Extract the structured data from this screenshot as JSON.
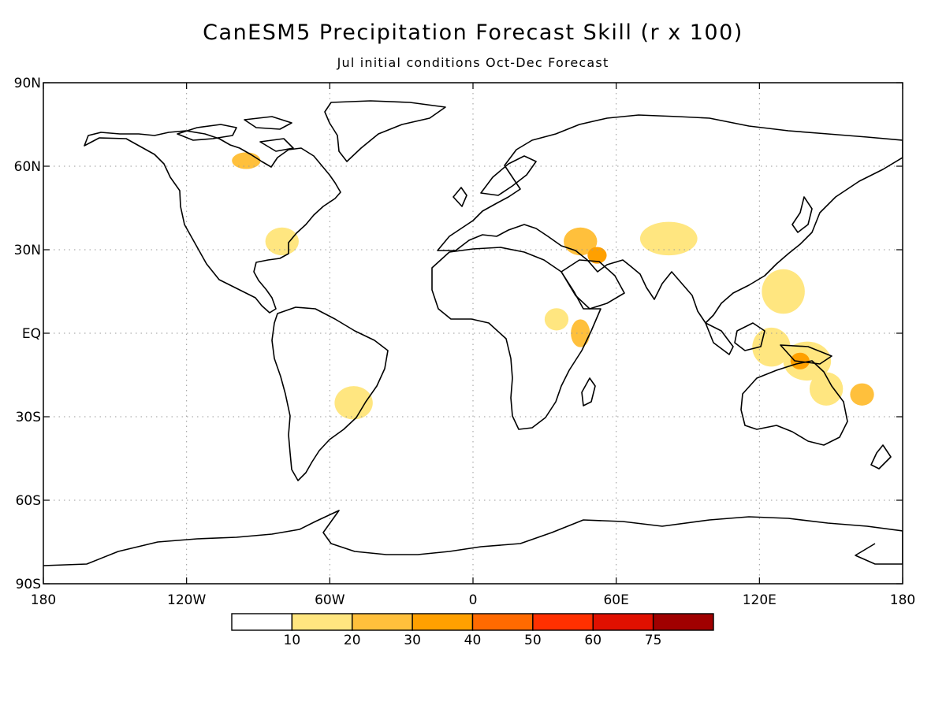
{
  "header": {
    "title": "CanESM5 Precipitation Forecast Skill (r x 100)",
    "subtitle": "Jul initial conditions  Oct-Dec Forecast"
  },
  "axes": {
    "lon_ticks": [
      {
        "lon": -180,
        "label": "180"
      },
      {
        "lon": -120,
        "label": "120W"
      },
      {
        "lon": -60,
        "label": "60W"
      },
      {
        "lon": 0,
        "label": "0"
      },
      {
        "lon": 60,
        "label": "60E"
      },
      {
        "lon": 120,
        "label": "120E"
      },
      {
        "lon": 180,
        "label": "180"
      }
    ],
    "lat_ticks": [
      {
        "lat": 90,
        "label": "90N"
      },
      {
        "lat": 60,
        "label": "60N"
      },
      {
        "lat": 30,
        "label": "30N"
      },
      {
        "lat": 0,
        "label": "EQ"
      },
      {
        "lat": -30,
        "label": "30S"
      },
      {
        "lat": -60,
        "label": "60S"
      },
      {
        "lat": -90,
        "label": "90S"
      }
    ],
    "grid": true
  },
  "legend": {
    "colors": [
      "#ffffff",
      "#ffe680",
      "#ffc03c",
      "#ffa000",
      "#ff6a00",
      "#ff3000",
      "#e01000",
      "#a00000"
    ],
    "labels": [
      "10",
      "20",
      "30",
      "40",
      "50",
      "60",
      "75"
    ]
  },
  "skill_patches": [
    {
      "lon": 82,
      "lat": 34,
      "rx": 12,
      "ry": 6,
      "level": 1
    },
    {
      "lon": -80,
      "lat": 33,
      "rx": 7,
      "ry": 5,
      "level": 1
    },
    {
      "lon": 45,
      "lat": 33,
      "rx": 7,
      "ry": 5,
      "level": 2
    },
    {
      "lon": 52,
      "lat": 28,
      "rx": 4,
      "ry": 3,
      "level": 3
    },
    {
      "lon": 125,
      "lat": -5,
      "rx": 8,
      "ry": 7,
      "level": 1
    },
    {
      "lon": 140,
      "lat": -10,
      "rx": 10,
      "ry": 7,
      "level": 1
    },
    {
      "lon": 137,
      "lat": -10,
      "rx": 4,
      "ry": 3,
      "level": 3
    },
    {
      "lon": -95,
      "lat": 62,
      "rx": 6,
      "ry": 3,
      "level": 2
    },
    {
      "lon": 45,
      "lat": 0,
      "rx": 4,
      "ry": 5,
      "level": 2
    },
    {
      "lon": 163,
      "lat": -22,
      "rx": 5,
      "ry": 4,
      "level": 2
    },
    {
      "lon": 130,
      "lat": 15,
      "rx": 9,
      "ry": 8,
      "level": 1
    },
    {
      "lon": 35,
      "lat": 5,
      "rx": 5,
      "ry": 4,
      "level": 1
    },
    {
      "lon": 148,
      "lat": -20,
      "rx": 7,
      "ry": 6,
      "level": 1
    },
    {
      "lon": -50,
      "lat": -25,
      "rx": 8,
      "ry": 6,
      "level": 1
    }
  ]
}
